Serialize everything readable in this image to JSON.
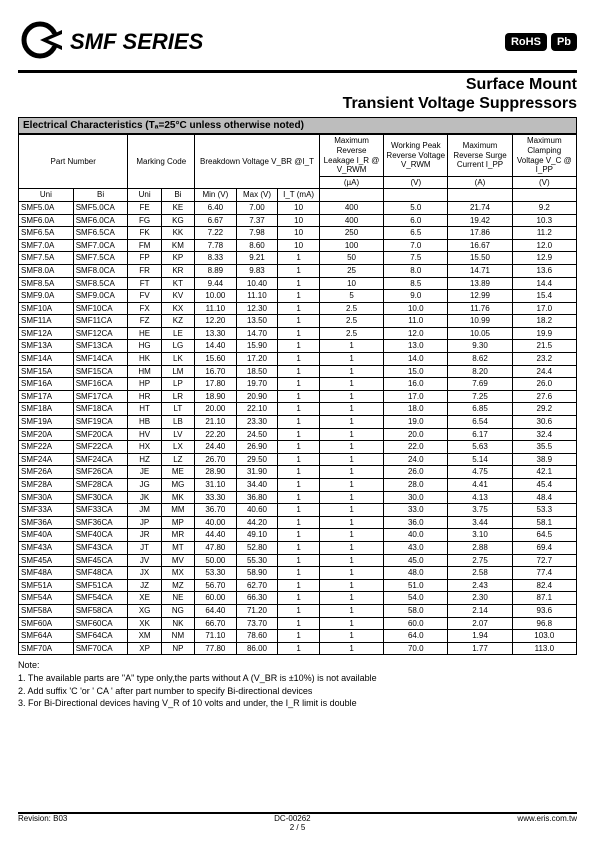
{
  "header": {
    "series_title": "SMF SERIES",
    "badge_rohs": "RoHS",
    "badge_pb": "Pb",
    "subtitle1": "Surface Mount",
    "subtitle2": "Transient Voltage Suppressors"
  },
  "table": {
    "section_title": "Electrical Characteristics (Tₐ=25°C unless otherwise noted)",
    "head": {
      "part_number": "Part Number",
      "marking_code": "Marking Code",
      "breakdown": "Breakdown Voltage V_BR @I_T",
      "max_leak": "Maximum Reverse Leakage I_R @ V_RWM",
      "working": "Working Peak Reverse Voltage V_RWM",
      "max_surge": "Maximum Reverse Surge Current I_PP",
      "max_clamp": "Maximum Clamping Voltage V_C @ I_PP",
      "uni": "Uni",
      "bi": "Bi",
      "min_v": "Min (V)",
      "max_v": "Max (V)",
      "it_ma": "I_T (mA)",
      "u_ua": "(µA)",
      "u_v": "(V)",
      "u_a": "(A)"
    },
    "rows": [
      [
        "SMF5.0A",
        "SMF5.0CA",
        "FE",
        "KE",
        "6.40",
        "7.00",
        "10",
        "400",
        "5.0",
        "21.74",
        "9.2"
      ],
      [
        "SMF6.0A",
        "SMF6.0CA",
        "FG",
        "KG",
        "6.67",
        "7.37",
        "10",
        "400",
        "6.0",
        "19.42",
        "10.3"
      ],
      [
        "SMF6.5A",
        "SMF6.5CA",
        "FK",
        "KK",
        "7.22",
        "7.98",
        "10",
        "250",
        "6.5",
        "17.86",
        "11.2"
      ],
      [
        "SMF7.0A",
        "SMF7.0CA",
        "FM",
        "KM",
        "7.78",
        "8.60",
        "10",
        "100",
        "7.0",
        "16.67",
        "12.0"
      ],
      [
        "SMF7.5A",
        "SMF7.5CA",
        "FP",
        "KP",
        "8.33",
        "9.21",
        "1",
        "50",
        "7.5",
        "15.50",
        "12.9"
      ],
      [
        "SMF8.0A",
        "SMF8.0CA",
        "FR",
        "KR",
        "8.89",
        "9.83",
        "1",
        "25",
        "8.0",
        "14.71",
        "13.6"
      ],
      [
        "SMF8.5A",
        "SMF8.5CA",
        "FT",
        "KT",
        "9.44",
        "10.40",
        "1",
        "10",
        "8.5",
        "13.89",
        "14.4"
      ],
      [
        "SMF9.0A",
        "SMF9.0CA",
        "FV",
        "KV",
        "10.00",
        "11.10",
        "1",
        "5",
        "9.0",
        "12.99",
        "15.4"
      ],
      [
        "SMF10A",
        "SMF10CA",
        "FX",
        "KX",
        "11.10",
        "12.30",
        "1",
        "2.5",
        "10.0",
        "11.76",
        "17.0"
      ],
      [
        "SMF11A",
        "SMF11CA",
        "FZ",
        "KZ",
        "12.20",
        "13.50",
        "1",
        "2.5",
        "11.0",
        "10.99",
        "18.2"
      ],
      [
        "SMF12A",
        "SMF12CA",
        "HE",
        "LE",
        "13.30",
        "14.70",
        "1",
        "2.5",
        "12.0",
        "10.05",
        "19.9"
      ],
      [
        "SMF13A",
        "SMF13CA",
        "HG",
        "LG",
        "14.40",
        "15.90",
        "1",
        "1",
        "13.0",
        "9.30",
        "21.5"
      ],
      [
        "SMF14A",
        "SMF14CA",
        "HK",
        "LK",
        "15.60",
        "17.20",
        "1",
        "1",
        "14.0",
        "8.62",
        "23.2"
      ],
      [
        "SMF15A",
        "SMF15CA",
        "HM",
        "LM",
        "16.70",
        "18.50",
        "1",
        "1",
        "15.0",
        "8.20",
        "24.4"
      ],
      [
        "SMF16A",
        "SMF16CA",
        "HP",
        "LP",
        "17.80",
        "19.70",
        "1",
        "1",
        "16.0",
        "7.69",
        "26.0"
      ],
      [
        "SMF17A",
        "SMF17CA",
        "HR",
        "LR",
        "18.90",
        "20.90",
        "1",
        "1",
        "17.0",
        "7.25",
        "27.6"
      ],
      [
        "SMF18A",
        "SMF18CA",
        "HT",
        "LT",
        "20.00",
        "22.10",
        "1",
        "1",
        "18.0",
        "6.85",
        "29.2"
      ],
      [
        "SMF19A",
        "SMF19CA",
        "HB",
        "LB",
        "21.10",
        "23.30",
        "1",
        "1",
        "19.0",
        "6.54",
        "30.6"
      ],
      [
        "SMF20A",
        "SMF20CA",
        "HV",
        "LV",
        "22.20",
        "24.50",
        "1",
        "1",
        "20.0",
        "6.17",
        "32.4"
      ],
      [
        "SMF22A",
        "SMF22CA",
        "HX",
        "LX",
        "24.40",
        "26.90",
        "1",
        "1",
        "22.0",
        "5.63",
        "35.5"
      ],
      [
        "SMF24A",
        "SMF24CA",
        "HZ",
        "LZ",
        "26.70",
        "29.50",
        "1",
        "1",
        "24.0",
        "5.14",
        "38.9"
      ],
      [
        "SMF26A",
        "SMF26CA",
        "JE",
        "ME",
        "28.90",
        "31.90",
        "1",
        "1",
        "26.0",
        "4.75",
        "42.1"
      ],
      [
        "SMF28A",
        "SMF28CA",
        "JG",
        "MG",
        "31.10",
        "34.40",
        "1",
        "1",
        "28.0",
        "4.41",
        "45.4"
      ],
      [
        "SMF30A",
        "SMF30CA",
        "JK",
        "MK",
        "33.30",
        "36.80",
        "1",
        "1",
        "30.0",
        "4.13",
        "48.4"
      ],
      [
        "SMF33A",
        "SMF33CA",
        "JM",
        "MM",
        "36.70",
        "40.60",
        "1",
        "1",
        "33.0",
        "3.75",
        "53.3"
      ],
      [
        "SMF36A",
        "SMF36CA",
        "JP",
        "MP",
        "40.00",
        "44.20",
        "1",
        "1",
        "36.0",
        "3.44",
        "58.1"
      ],
      [
        "SMF40A",
        "SMF40CA",
        "JR",
        "MR",
        "44.40",
        "49.10",
        "1",
        "1",
        "40.0",
        "3.10",
        "64.5"
      ],
      [
        "SMF43A",
        "SMF43CA",
        "JT",
        "MT",
        "47.80",
        "52.80",
        "1",
        "1",
        "43.0",
        "2.88",
        "69.4"
      ],
      [
        "SMF45A",
        "SMF45CA",
        "JV",
        "MV",
        "50.00",
        "55.30",
        "1",
        "1",
        "45.0",
        "2.75",
        "72.7"
      ],
      [
        "SMF48A",
        "SMF48CA",
        "JX",
        "MX",
        "53.30",
        "58.90",
        "1",
        "1",
        "48.0",
        "2.58",
        "77.4"
      ],
      [
        "SMF51A",
        "SMF51CA",
        "JZ",
        "MZ",
        "56.70",
        "62.70",
        "1",
        "1",
        "51.0",
        "2.43",
        "82.4"
      ],
      [
        "SMF54A",
        "SMF54CA",
        "XE",
        "NE",
        "60.00",
        "66.30",
        "1",
        "1",
        "54.0",
        "2.30",
        "87.1"
      ],
      [
        "SMF58A",
        "SMF58CA",
        "XG",
        "NG",
        "64.40",
        "71.20",
        "1",
        "1",
        "58.0",
        "2.14",
        "93.6"
      ],
      [
        "SMF60A",
        "SMF60CA",
        "XK",
        "NK",
        "66.70",
        "73.70",
        "1",
        "1",
        "60.0",
        "2.07",
        "96.8"
      ],
      [
        "SMF64A",
        "SMF64CA",
        "XM",
        "NM",
        "71.10",
        "78.60",
        "1",
        "1",
        "64.0",
        "1.94",
        "103.0"
      ],
      [
        "SMF70A",
        "SMF70CA",
        "XP",
        "NP",
        "77.80",
        "86.00",
        "1",
        "1",
        "70.0",
        "1.77",
        "113.0"
      ]
    ]
  },
  "notes": {
    "title": "Note:",
    "n1": "1. The available parts are \"A\" type only,the parts without A (V_BR is ±10%) is not available",
    "n2": "2. Add suffix 'C 'or ' CA ' after part number to specify Bi-directional devices",
    "n3": "3. For Bi-Directional devices having V_R of 10 volts and under, the I_R limit is double"
  },
  "footer": {
    "revision": "Revision: B03",
    "docnum": "DC-00262",
    "page": "2 / 5",
    "url": "www.eris.com.tw"
  }
}
